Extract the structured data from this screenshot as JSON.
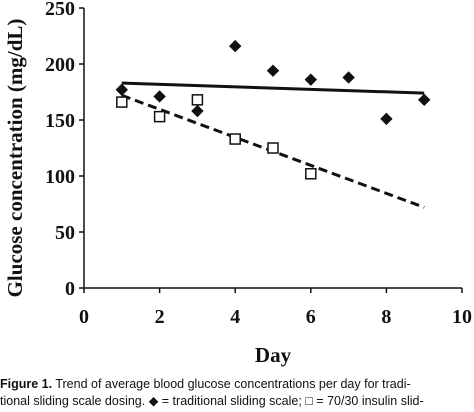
{
  "chart_data": {
    "type": "scatter",
    "xlabel": "Day",
    "ylabel": "Glucose concentration (mg/dL)",
    "xlim": [
      0,
      10
    ],
    "ylim": [
      0,
      250
    ],
    "xticks": [
      "0",
      "2",
      "4",
      "6",
      "8",
      "10"
    ],
    "yticks": [
      "0",
      "50",
      "100",
      "150",
      "200",
      "250"
    ],
    "grid": false,
    "series": [
      {
        "marker": "filled-diamond",
        "x": [
          1,
          2,
          3,
          4,
          5,
          6,
          7,
          8,
          9
        ],
        "y": [
          177,
          171,
          158,
          216,
          194,
          186,
          188,
          151,
          168
        ],
        "trendline": {
          "style": "solid",
          "x": [
            1,
            9
          ],
          "y": [
            183,
            174
          ]
        }
      },
      {
        "marker": "open-square",
        "x": [
          1,
          2,
          3,
          4,
          5,
          6
        ],
        "y": [
          166,
          153,
          168,
          133,
          125,
          102
        ],
        "trendline": {
          "style": "dashed",
          "x": [
            1,
            9
          ],
          "y": [
            172,
            72
          ]
        }
      }
    ]
  },
  "caption": {
    "lead": "Figure 1.",
    "line1": " Trend of average blood glucose concentrations per day for tradi-",
    "line2": "tional sliding scale dosing. ◆ = traditional sliding scale; □ = 70/30 insulin slid-"
  }
}
